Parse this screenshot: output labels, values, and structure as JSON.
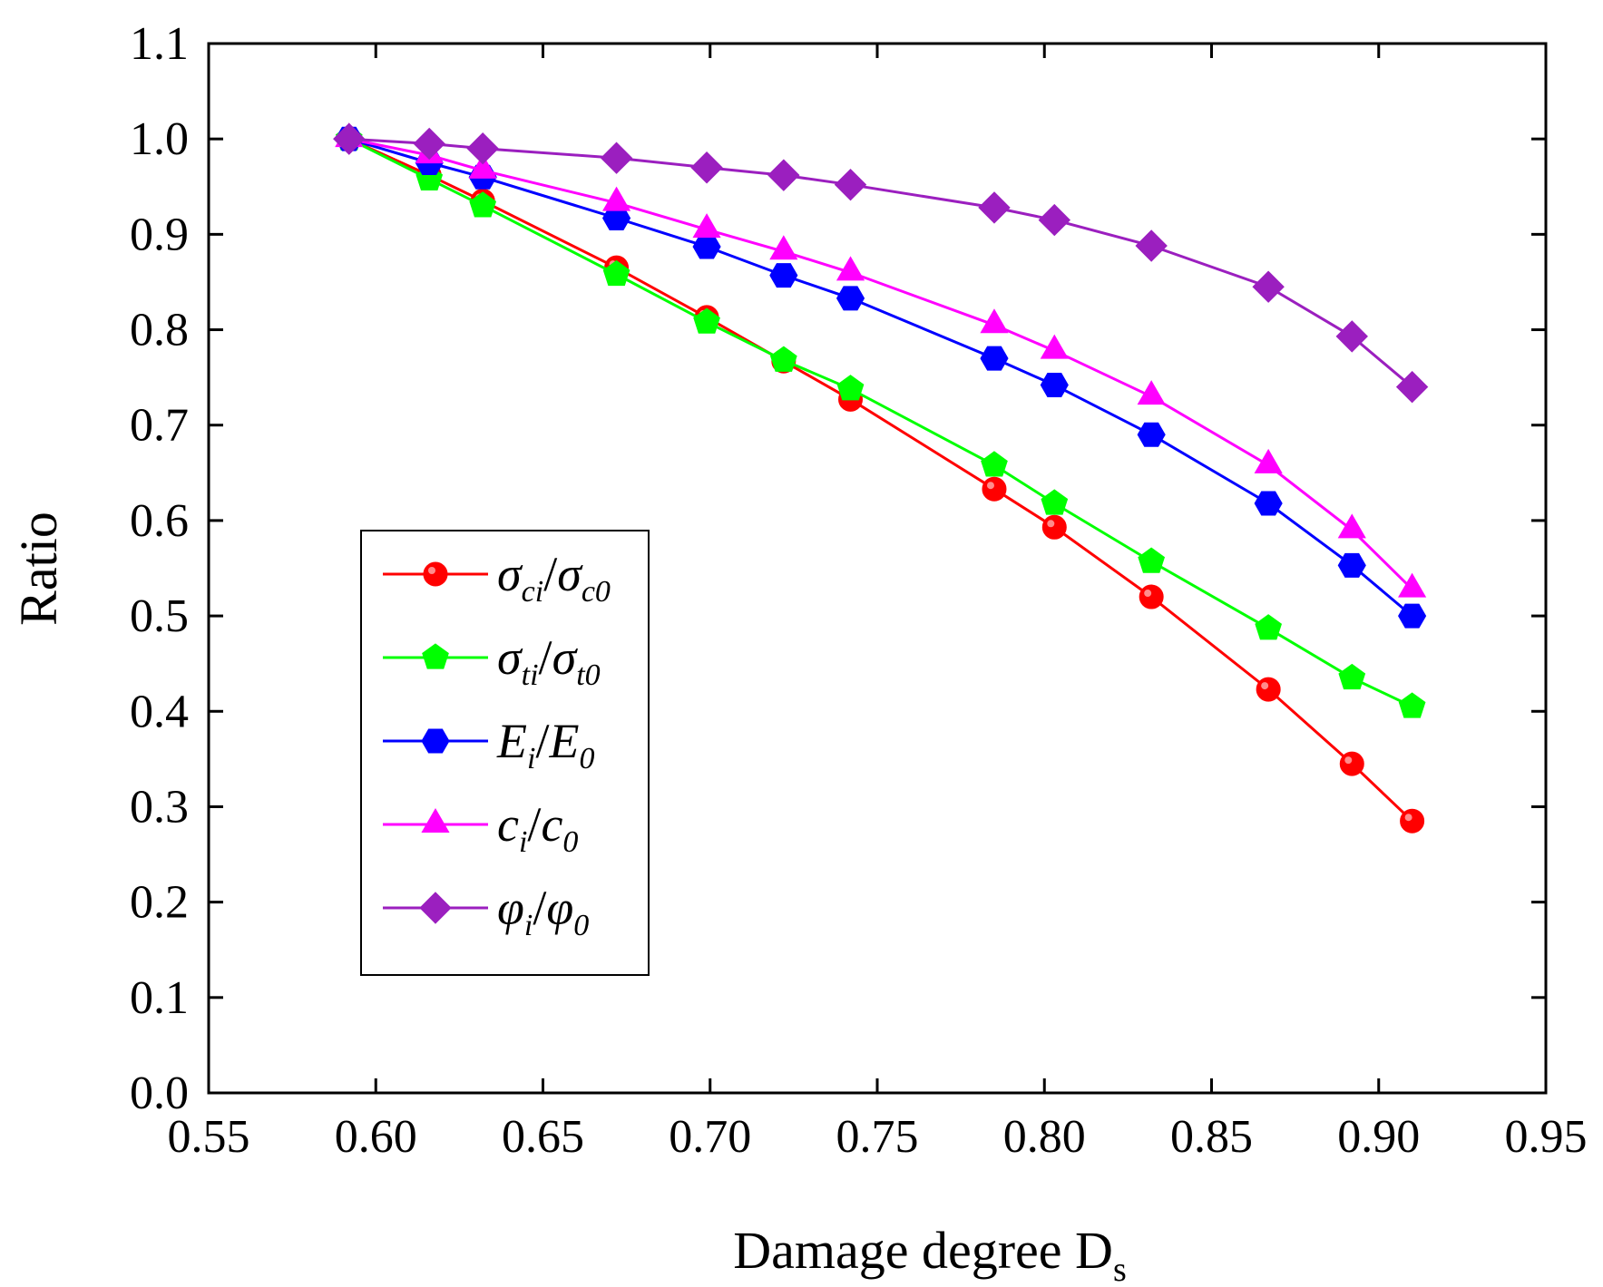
{
  "chart_data": {
    "type": "line",
    "xlabel": "Damage degree D",
    "xlabel_sub": "s",
    "ylabel": "Ratio",
    "xlim": [
      0.55,
      0.95
    ],
    "ylim": [
      0.0,
      1.1
    ],
    "x_ticks": [
      "0.55",
      "0.60",
      "0.65",
      "0.70",
      "0.75",
      "0.80",
      "0.85",
      "0.90",
      "0.95"
    ],
    "y_ticks": [
      "0.0",
      "0.1",
      "0.2",
      "0.3",
      "0.4",
      "0.5",
      "0.6",
      "0.7",
      "0.8",
      "0.9",
      "1.0",
      "1.1"
    ],
    "legend_position": "center-left",
    "x": [
      0.592,
      0.616,
      0.632,
      0.672,
      0.699,
      0.722,
      0.742,
      0.785,
      0.803,
      0.832,
      0.867,
      0.892,
      0.91
    ],
    "series": [
      {
        "name": "σci/σc0",
        "main": "σ",
        "sub1": "ci",
        "slash": "/",
        "main2": "σ",
        "sub2": "c0",
        "color": "#ff0000",
        "marker": "circle",
        "values": [
          1.0,
          0.962,
          0.935,
          0.865,
          0.813,
          0.767,
          0.727,
          0.633,
          0.593,
          0.52,
          0.423,
          0.345,
          0.285
        ]
      },
      {
        "name": "σti/σt0",
        "main": "σ",
        "sub1": "ti",
        "slash": "/",
        "main2": "σ",
        "sub2": "t0",
        "color": "#00ff00",
        "marker": "pentagon",
        "values": [
          1.0,
          0.958,
          0.93,
          0.858,
          0.808,
          0.768,
          0.738,
          0.658,
          0.618,
          0.557,
          0.487,
          0.435,
          0.405
        ]
      },
      {
        "name": "Ei/E0",
        "main": "E",
        "sub1": "i",
        "slash": "/",
        "main2": "E",
        "sub2": "0",
        "color": "#0000ff",
        "marker": "hexagon",
        "values": [
          1.0,
          0.975,
          0.96,
          0.917,
          0.887,
          0.857,
          0.833,
          0.77,
          0.742,
          0.69,
          0.618,
          0.553,
          0.5
        ]
      },
      {
        "name": "ci/c0",
        "main": "c",
        "sub1": "i",
        "slash": "/",
        "main2": "c",
        "sub2": "0",
        "color": "#ff00ff",
        "marker": "triangle",
        "values": [
          1.0,
          0.983,
          0.967,
          0.933,
          0.905,
          0.882,
          0.86,
          0.805,
          0.778,
          0.73,
          0.658,
          0.59,
          0.528
        ]
      },
      {
        "name": "φi/φ0",
        "main": "φ",
        "sub1": "i",
        "slash": "/",
        "main2": "φ",
        "sub2": "0",
        "color": "#9b1fbf",
        "marker": "diamond",
        "values": [
          1.0,
          0.995,
          0.99,
          0.98,
          0.97,
          0.962,
          0.952,
          0.928,
          0.915,
          0.888,
          0.845,
          0.793,
          0.74
        ]
      }
    ]
  }
}
